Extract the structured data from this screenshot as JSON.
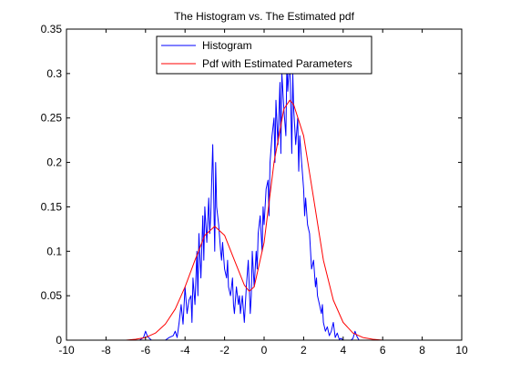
{
  "chart_data": {
    "type": "line",
    "title": "The Histogram vs. The Estimated pdf",
    "xlabel": "",
    "ylabel": "",
    "xlim": [
      -10,
      10
    ],
    "ylim": [
      0,
      0.35
    ],
    "xticks": [
      -10,
      -8,
      -6,
      -4,
      -2,
      0,
      2,
      4,
      6,
      8,
      10
    ],
    "yticks": [
      0,
      0.05,
      0.1,
      0.15,
      0.2,
      0.25,
      0.3,
      0.35
    ],
    "ytick_labels": [
      "0",
      "0.05",
      "0.1",
      "0.15",
      "0.2",
      "0.25",
      "0.3",
      "0.35"
    ],
    "grid": false,
    "legend_position": "top-center",
    "series": [
      {
        "name": "Histogram",
        "color": "#0000ff",
        "x": [
          -10,
          -6.3,
          -6.1,
          -6.0,
          -5.9,
          -5.7,
          -5.0,
          -4.8,
          -4.6,
          -4.5,
          -4.4,
          -4.3,
          -4.25,
          -4.2,
          -4.1,
          -4.0,
          -3.9,
          -3.8,
          -3.7,
          -3.65,
          -3.6,
          -3.5,
          -3.4,
          -3.35,
          -3.3,
          -3.2,
          -3.1,
          -3.05,
          -3.0,
          -2.9,
          -2.8,
          -2.75,
          -2.7,
          -2.6,
          -2.5,
          -2.45,
          -2.4,
          -2.3,
          -2.2,
          -2.15,
          -2.1,
          -2.0,
          -1.9,
          -1.85,
          -1.8,
          -1.7,
          -1.6,
          -1.55,
          -1.5,
          -1.4,
          -1.3,
          -1.25,
          -1.2,
          -1.1,
          -1.0,
          -0.95,
          -0.9,
          -0.8,
          -0.7,
          -0.65,
          -0.6,
          -0.5,
          -0.4,
          -0.35,
          -0.3,
          -0.2,
          -0.1,
          -0.05,
          0.0,
          0.1,
          0.2,
          0.25,
          0.3,
          0.4,
          0.5,
          0.55,
          0.6,
          0.7,
          0.8,
          0.85,
          0.9,
          1.0,
          1.1,
          1.15,
          1.2,
          1.3,
          1.4,
          1.45,
          1.5,
          1.6,
          1.7,
          1.75,
          1.8,
          1.9,
          2.0,
          2.05,
          2.1,
          2.2,
          2.3,
          2.35,
          2.4,
          2.5,
          2.6,
          2.65,
          2.7,
          2.8,
          2.9,
          2.95,
          3.0,
          3.1,
          3.2,
          3.3,
          3.4,
          3.5,
          3.6,
          3.7,
          3.8,
          3.9,
          4.0,
          4.2,
          4.4,
          4.5,
          4.6,
          4.7,
          4.8,
          5.0,
          10
        ],
        "y": [
          0,
          0,
          0.003,
          0.01,
          0.004,
          0,
          0,
          0.003,
          0.005,
          0.01,
          0.003,
          0.02,
          0.03,
          0.04,
          0.018,
          0.06,
          0.03,
          0.045,
          0.05,
          0.02,
          0.07,
          0.04,
          0.1,
          0.05,
          0.12,
          0.07,
          0.14,
          0.09,
          0.15,
          0.11,
          0.16,
          0.12,
          0.14,
          0.22,
          0.1,
          0.2,
          0.15,
          0.13,
          0.1,
          0.09,
          0.11,
          0.08,
          0.07,
          0.09,
          0.06,
          0.05,
          0.07,
          0.04,
          0.03,
          0.06,
          0.04,
          0.05,
          0.03,
          0.05,
          0.02,
          0.04,
          0.06,
          0.09,
          0.03,
          0.05,
          0.1,
          0.06,
          0.1,
          0.08,
          0.12,
          0.14,
          0.1,
          0.15,
          0.13,
          0.17,
          0.18,
          0.14,
          0.2,
          0.23,
          0.25,
          0.2,
          0.27,
          0.22,
          0.29,
          0.21,
          0.3,
          0.26,
          0.23,
          0.31,
          0.28,
          0.32,
          0.21,
          0.3,
          0.26,
          0.22,
          0.25,
          0.19,
          0.23,
          0.2,
          0.17,
          0.14,
          0.16,
          0.13,
          0.12,
          0.1,
          0.08,
          0.09,
          0.06,
          0.07,
          0.05,
          0.04,
          0.03,
          0.04,
          0.02,
          0.01,
          0.015,
          0.005,
          0.01,
          0.02,
          0.003,
          0.008,
          0.001,
          0.002,
          0,
          0,
          0,
          0.002,
          0.01,
          0.004,
          0,
          0,
          0
        ]
      },
      {
        "name": "Pdf with Estimated Parameters",
        "color": "#ff0000",
        "x": [
          -10,
          -7,
          -6.5,
          -6,
          -5.5,
          -5,
          -4.5,
          -4,
          -3.5,
          -3,
          -2.5,
          -2,
          -1.5,
          -1,
          -0.75,
          -0.5,
          0,
          0.5,
          1,
          1.3,
          1.5,
          2,
          2.5,
          3,
          3.5,
          4,
          4.5,
          5,
          5.5,
          6,
          10
        ],
        "y": [
          0,
          0,
          0.001,
          0.003,
          0.008,
          0.018,
          0.035,
          0.06,
          0.09,
          0.118,
          0.128,
          0.118,
          0.09,
          0.062,
          0.055,
          0.06,
          0.11,
          0.2,
          0.26,
          0.27,
          0.265,
          0.23,
          0.16,
          0.09,
          0.045,
          0.02,
          0.008,
          0.003,
          0.001,
          0,
          0
        ]
      }
    ]
  }
}
